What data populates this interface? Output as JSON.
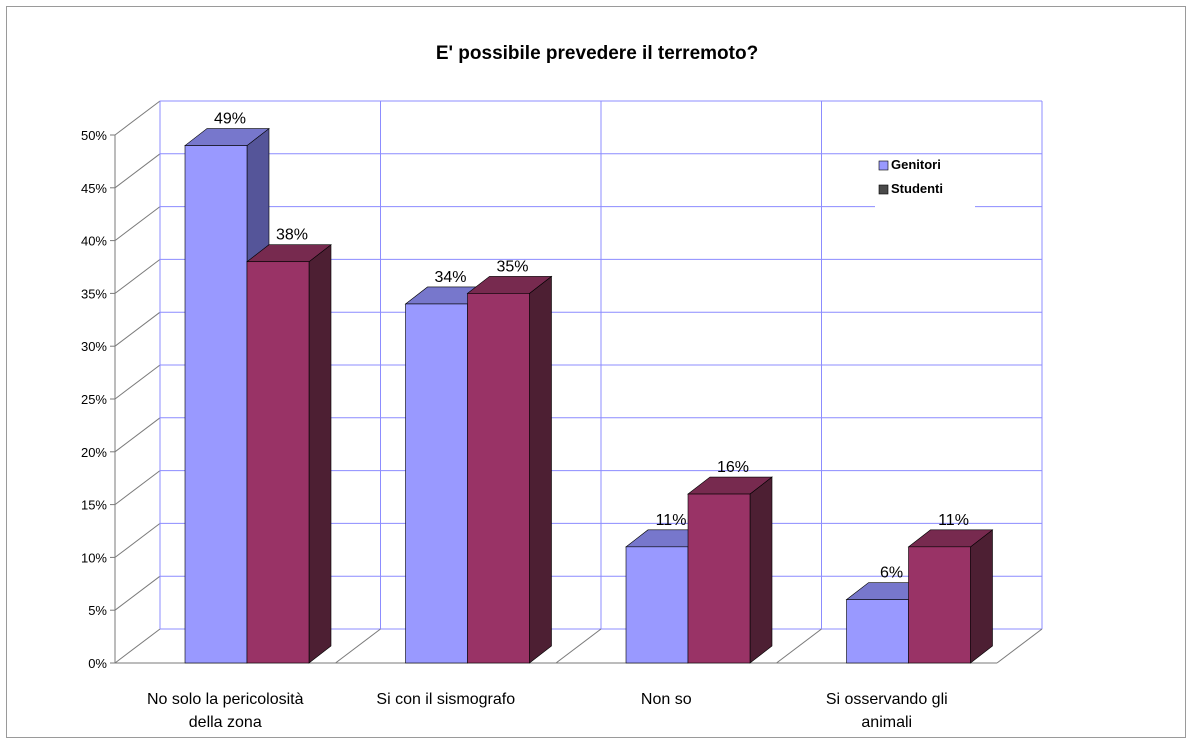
{
  "chart_data": {
    "type": "bar",
    "title": "E' possibile prevedere il terremoto?",
    "categories": [
      [
        "No solo la pericolosità",
        "della zona"
      ],
      [
        "Si con il sismografo"
      ],
      [
        "Non so"
      ],
      [
        "Si osservando gli",
        "animali"
      ]
    ],
    "series": [
      {
        "name": "Genitori",
        "values": [
          49,
          34,
          11,
          6
        ]
      },
      {
        "name": "Studenti",
        "values": [
          38,
          35,
          16,
          11
        ]
      }
    ],
    "data_labels": [
      [
        "49%",
        "34%",
        "11%",
        "6%"
      ],
      [
        "38%",
        "35%",
        "16%",
        "11%"
      ]
    ],
    "ylim": [
      0,
      50
    ],
    "yticks": [
      0,
      5,
      10,
      15,
      20,
      25,
      30,
      35,
      40,
      45,
      50
    ],
    "ytick_labels": [
      "0%",
      "5%",
      "10%",
      "15%",
      "20%",
      "25%",
      "30%",
      "35%",
      "40%",
      "45%",
      "50%"
    ],
    "grid": true,
    "legend_position": "top-right",
    "colors": {
      "series_front": [
        "#9999ff",
        "#993366"
      ],
      "series_top": [
        "#7777cc",
        "#772a4f"
      ],
      "series_side": [
        "#555599",
        "#4d1f33"
      ],
      "legend_swatch": [
        "#9999ff",
        "#4a4a4a"
      ],
      "grid": "#8c8cff",
      "floor": "#7a7a7a"
    }
  }
}
